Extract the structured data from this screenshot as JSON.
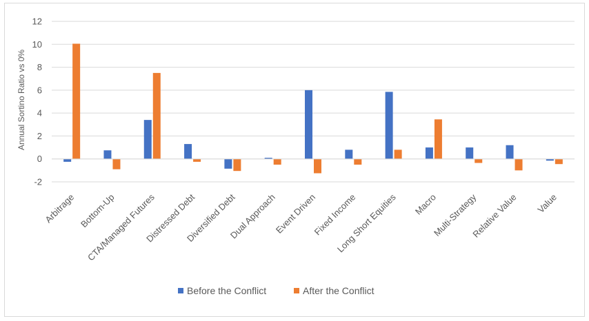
{
  "chart_data": {
    "type": "bar",
    "title": "",
    "xlabel": "",
    "ylabel": "Annual Sortino Ratio vs 0%",
    "ylim": [
      -2,
      12
    ],
    "yticks": [
      -2,
      0,
      2,
      4,
      6,
      8,
      10,
      12
    ],
    "grid": true,
    "legend_position": "bottom",
    "categories": [
      "Arbitrage",
      "Bottom-Up",
      "CTA/Managed Futures",
      "Distressed Debt",
      "Diversified Debt",
      "Dual Approach",
      "Event Driven",
      "Fixed Income",
      "Long Short Equities",
      "Macro",
      "Multi-Strategy",
      "Relative Value",
      "Value"
    ],
    "series": [
      {
        "name": "Before the Conflict",
        "color": "#4472c4",
        "values": [
          -0.25,
          0.75,
          3.4,
          1.3,
          -0.85,
          0.1,
          6.0,
          0.8,
          5.85,
          1.0,
          1.0,
          1.2,
          -0.15
        ]
      },
      {
        "name": "After the Conflict",
        "color": "#ed7d31",
        "values": [
          10.05,
          -0.9,
          7.5,
          -0.25,
          -1.05,
          -0.5,
          -1.25,
          -0.5,
          0.8,
          3.45,
          -0.35,
          -1.0,
          -0.45
        ]
      }
    ]
  }
}
